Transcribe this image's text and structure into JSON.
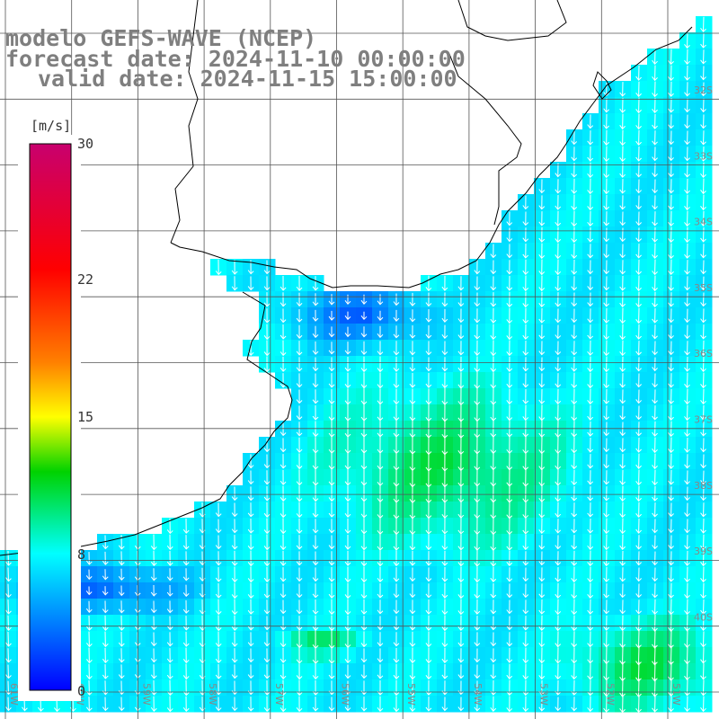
{
  "title": {
    "line1": "modelo GEFS-WAVE (NCEP)",
    "line2": "forecast date: 2024-11-10 00:00:00",
    "line3": "valid date: 2024-11-15 15:00:00"
  },
  "colorbar": {
    "unit": "[m/s]",
    "ticks": [
      "30",
      "22",
      "15",
      "8",
      "0"
    ],
    "tick_values": [
      30,
      22,
      15,
      8,
      0
    ],
    "colors": [
      "#c8006e",
      "#ff0000",
      "#ff8000",
      "#ffff00",
      "#00d200",
      "#00ffff",
      "#0000ff"
    ]
  },
  "axes": {
    "lat_labels": [
      "32S",
      "33S",
      "34S",
      "35S",
      "36S",
      "37S",
      "38S",
      "39S",
      "40S"
    ],
    "lon_labels": [
      "61W",
      "60W",
      "59W",
      "58W",
      "57W",
      "56W",
      "55W",
      "54W",
      "53W",
      "52W",
      "51W"
    ]
  },
  "field": {
    "variable": "wind speed",
    "unit": "m/s",
    "wind_direction": "from northeast to north",
    "wind_speed_range": [
      2,
      12
    ]
  }
}
